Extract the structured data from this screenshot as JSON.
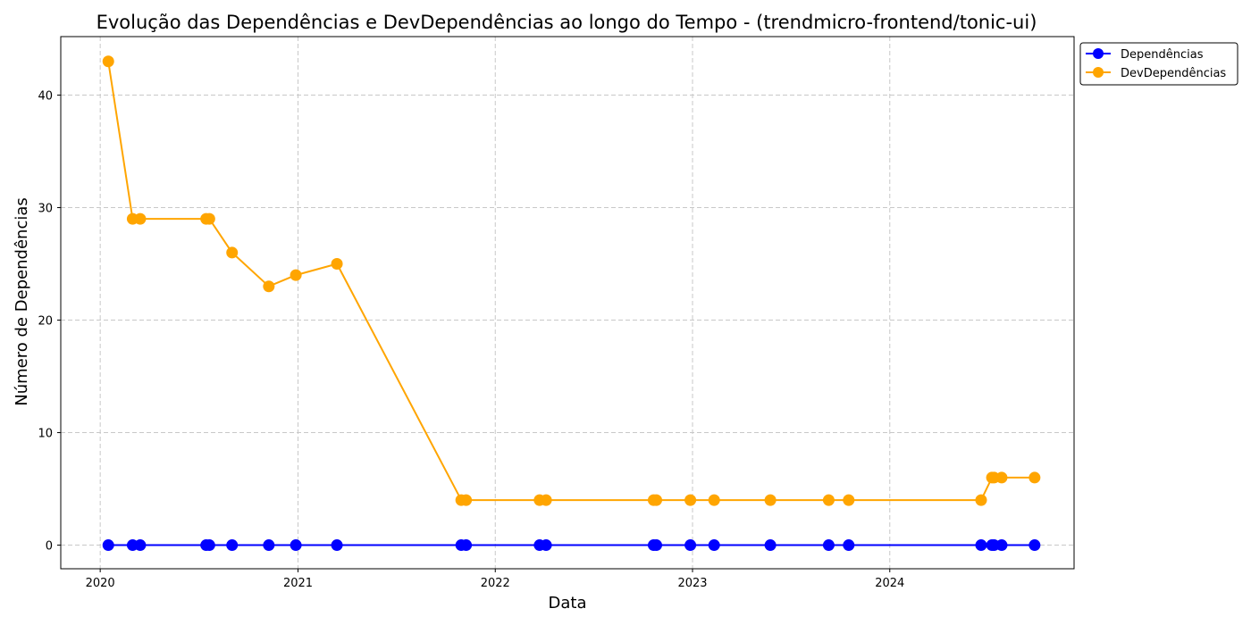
{
  "chart_data": {
    "type": "line",
    "title": "Evolução das Dependências e DevDependências ao longo do Tempo - (trendmicro-frontend/tonic-ui)",
    "xlabel": "Data",
    "ylabel": "Número de Dependências",
    "xlim": [
      "2019-10-20",
      "2024-12-07"
    ],
    "ylim": [
      -2.1,
      45.2
    ],
    "x_ticks": [
      "2020-01-01",
      "2021-01-01",
      "2022-01-01",
      "2023-01-01",
      "2024-01-01"
    ],
    "x_tick_labels": [
      "2020",
      "2021",
      "2022",
      "2023",
      "2024"
    ],
    "y_ticks": [
      0,
      10,
      20,
      30,
      40
    ],
    "y_tick_labels": [
      "0",
      "10",
      "20",
      "30",
      "40"
    ],
    "grid": true,
    "legend_position": "outside-top-right",
    "x": [
      "2020-01-16",
      "2020-03-01",
      "2020-03-15",
      "2020-07-15",
      "2020-07-21",
      "2020-09-01",
      "2020-11-08",
      "2020-12-28",
      "2021-03-14",
      "2021-10-30",
      "2021-11-08",
      "2022-03-24",
      "2022-04-05",
      "2022-10-21",
      "2022-10-26",
      "2022-12-28",
      "2023-02-10",
      "2023-05-25",
      "2023-09-10",
      "2023-10-17",
      "2024-06-18",
      "2024-07-08",
      "2024-07-12",
      "2024-07-26",
      "2024-09-25"
    ],
    "series": [
      {
        "name": "Dependências",
        "color": "#0000ff",
        "values": [
          0,
          0,
          0,
          0,
          0,
          0,
          0,
          0,
          0,
          0,
          0,
          0,
          0,
          0,
          0,
          0,
          0,
          0,
          0,
          0,
          0,
          0,
          0,
          0,
          0
        ]
      },
      {
        "name": "DevDependências",
        "color": "#ffa500",
        "values": [
          43,
          29,
          29,
          29,
          29,
          26,
          23,
          24,
          25,
          4,
          4,
          4,
          4,
          4,
          4,
          4,
          4,
          4,
          4,
          4,
          4,
          6,
          6,
          6,
          6
        ]
      }
    ]
  }
}
